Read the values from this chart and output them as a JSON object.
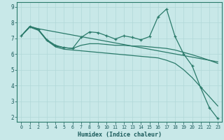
{
  "xlabel": "Humidex (Indice chaleur)",
  "ylabel": "",
  "bg_color": "#c8e8e8",
  "grid_color": "#b0d8d8",
  "line_color": "#2a7a6a",
  "xlim": [
    -0.5,
    23.5
  ],
  "ylim": [
    1.7,
    9.3
  ],
  "xticks": [
    0,
    1,
    2,
    3,
    4,
    5,
    6,
    7,
    8,
    9,
    10,
    11,
    12,
    13,
    14,
    15,
    16,
    17,
    18,
    19,
    20,
    21,
    22,
    23
  ],
  "yticks": [
    2,
    3,
    4,
    5,
    6,
    7,
    8,
    9
  ],
  "lines": [
    {
      "x": [
        0,
        1,
        2,
        3,
        4,
        5,
        6,
        7,
        8,
        9,
        10,
        11,
        12,
        13,
        14,
        15,
        16,
        17,
        18,
        19,
        20,
        21,
        22,
        23
      ],
      "y": [
        7.15,
        7.75,
        7.55,
        6.9,
        6.55,
        6.4,
        6.35,
        7.05,
        7.4,
        7.35,
        7.15,
        6.95,
        7.15,
        7.05,
        6.9,
        7.1,
        8.35,
        8.85,
        7.1,
        6.0,
        5.25,
        3.85,
        2.6,
        1.9
      ],
      "marker": "+"
    },
    {
      "x": [
        0,
        1,
        2,
        3,
        4,
        5,
        6,
        7,
        8,
        9,
        10,
        11,
        12,
        13,
        14,
        15,
        16,
        17,
        18,
        19,
        20,
        21,
        22,
        23
      ],
      "y": [
        7.15,
        7.75,
        7.55,
        6.85,
        6.5,
        6.4,
        6.35,
        6.55,
        6.65,
        6.65,
        6.6,
        6.55,
        6.55,
        6.5,
        6.5,
        6.45,
        6.4,
        6.35,
        6.25,
        6.1,
        5.95,
        5.78,
        5.6,
        5.4
      ],
      "marker": null
    },
    {
      "x": [
        0,
        1,
        2,
        3,
        4,
        5,
        6,
        7,
        8,
        9,
        10,
        11,
        12,
        13,
        14,
        15,
        16,
        17,
        18,
        19,
        20,
        21,
        22,
        23
      ],
      "y": [
        7.15,
        7.75,
        7.6,
        7.5,
        7.4,
        7.3,
        7.2,
        7.1,
        7.0,
        6.9,
        6.8,
        6.7,
        6.6,
        6.5,
        6.4,
        6.3,
        6.2,
        6.1,
        6.0,
        5.9,
        5.8,
        5.7,
        5.6,
        5.5
      ],
      "marker": null
    },
    {
      "x": [
        0,
        1,
        2,
        3,
        4,
        5,
        6,
        7,
        8,
        9,
        10,
        11,
        12,
        13,
        14,
        15,
        16,
        17,
        18,
        19,
        20,
        21,
        22,
        23
      ],
      "y": [
        7.15,
        7.7,
        7.5,
        6.85,
        6.45,
        6.3,
        6.25,
        6.2,
        6.15,
        6.1,
        6.05,
        6.0,
        5.95,
        5.9,
        5.85,
        5.8,
        5.75,
        5.6,
        5.4,
        5.0,
        4.5,
        3.9,
        3.3,
        2.7
      ],
      "marker": null
    }
  ]
}
